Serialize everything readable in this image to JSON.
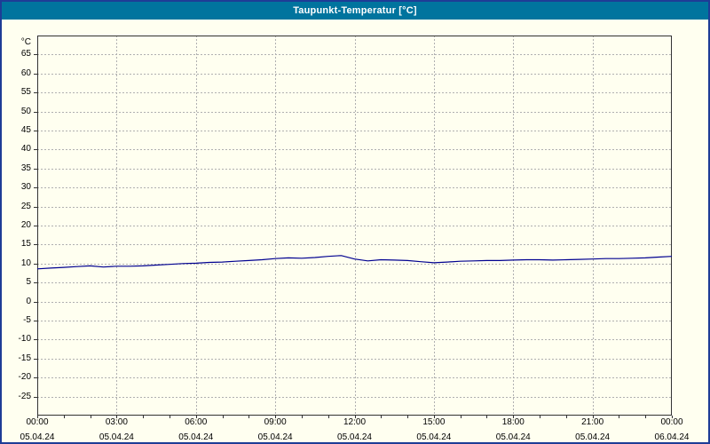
{
  "window": {
    "title": "Taupunkt-Temperatur [°C]"
  },
  "colors": {
    "title_bar_bg": "#00749e",
    "title_text": "#ffffff",
    "background": "#fffff0",
    "outer_border": "#1e3c96",
    "plot_border": "#333333",
    "grid": "#b0b0b0",
    "line": "#000090",
    "tick_text": "#000000"
  },
  "chart_data": {
    "type": "line",
    "title": "Taupunkt-Temperatur [°C]",
    "xlabel": "",
    "ylabel": "°C",
    "xlim": [
      0,
      24
    ],
    "ylim": [
      -30,
      70
    ],
    "grid": true,
    "legend": "none",
    "yticks": [
      65,
      60,
      55,
      50,
      45,
      40,
      35,
      30,
      25,
      20,
      15,
      10,
      5,
      0,
      -5,
      -10,
      -15,
      -20,
      -25
    ],
    "xticks": [
      {
        "hour": 0,
        "time": "00:00",
        "date": "05.04.24"
      },
      {
        "hour": 3,
        "time": "03:00",
        "date": "05.04.24"
      },
      {
        "hour": 6,
        "time": "06:00",
        "date": "05.04.24"
      },
      {
        "hour": 9,
        "time": "09:00",
        "date": "05.04.24"
      },
      {
        "hour": 12,
        "time": "12:00",
        "date": "05.04.24"
      },
      {
        "hour": 15,
        "time": "15:00",
        "date": "05.04.24"
      },
      {
        "hour": 18,
        "time": "18:00",
        "date": "05.04.24"
      },
      {
        "hour": 21,
        "time": "21:00",
        "date": "05.04.24"
      },
      {
        "hour": 24,
        "time": "00:00",
        "date": "06.04.24"
      }
    ],
    "series": [
      {
        "name": "Taupunkt-Temperatur",
        "color": "#000090",
        "x": [
          0,
          0.5,
          1,
          1.5,
          2,
          2.5,
          3,
          3.5,
          4,
          4.5,
          5,
          5.5,
          6,
          6.5,
          7,
          7.5,
          8,
          8.5,
          9,
          9.5,
          10,
          10.5,
          11,
          11.5,
          12,
          12.5,
          13,
          13.5,
          14,
          14.5,
          15,
          15.5,
          16,
          16.5,
          17,
          17.5,
          18,
          18.5,
          19,
          19.5,
          20,
          20.5,
          21,
          21.5,
          22,
          22.5,
          23,
          23.5,
          24
        ],
        "values": [
          8.6,
          8.8,
          9.0,
          9.2,
          9.4,
          9.1,
          9.3,
          9.3,
          9.4,
          9.6,
          9.8,
          10.0,
          10.1,
          10.3,
          10.4,
          10.6,
          10.8,
          11.0,
          11.3,
          11.5,
          11.4,
          11.6,
          11.9,
          12.1,
          11.2,
          10.7,
          11.0,
          10.9,
          10.8,
          10.5,
          10.2,
          10.4,
          10.6,
          10.7,
          10.8,
          10.8,
          10.9,
          11.0,
          11.0,
          10.9,
          11.0,
          11.1,
          11.2,
          11.3,
          11.3,
          11.4,
          11.5,
          11.7,
          11.9
        ]
      }
    ]
  }
}
